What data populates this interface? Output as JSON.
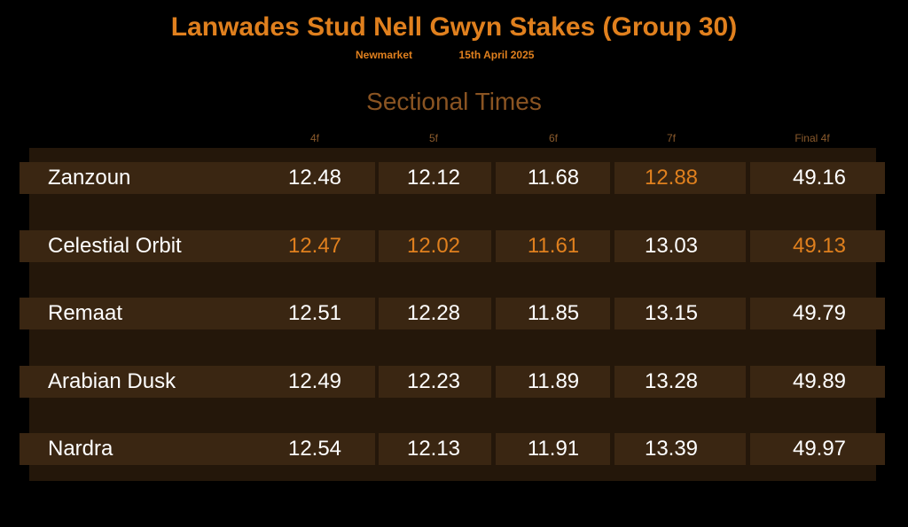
{
  "header": {
    "title": "Lanwades Stud Nell Gwyn Stakes (Group 30)",
    "venue": "Newmarket",
    "date": "15th April 2025"
  },
  "table": {
    "title": "Sectional Times",
    "highlight_color": "#e0801e",
    "columns": [
      "4f",
      "5f",
      "6f",
      "7f",
      "Final 4f"
    ],
    "rows": [
      {
        "horse": "Zanzoun",
        "times": [
          "12.48",
          "12.12",
          "11.68",
          "12.88",
          "49.16"
        ],
        "highlighted": [
          3
        ]
      },
      {
        "horse": "Celestial Orbit",
        "times": [
          "12.47",
          "12.02",
          "11.61",
          "13.03",
          "49.13"
        ],
        "highlighted": [
          0,
          1,
          2,
          4
        ]
      },
      {
        "horse": "Remaat",
        "times": [
          "12.51",
          "12.28",
          "11.85",
          "13.15",
          "49.79"
        ],
        "highlighted": []
      },
      {
        "horse": "Arabian Dusk",
        "times": [
          "12.49",
          "12.23",
          "11.89",
          "13.28",
          "49.89"
        ],
        "highlighted": []
      },
      {
        "horse": "Nardra",
        "times": [
          "12.54",
          "12.13",
          "11.91",
          "13.39",
          "49.97"
        ],
        "highlighted": []
      }
    ]
  }
}
